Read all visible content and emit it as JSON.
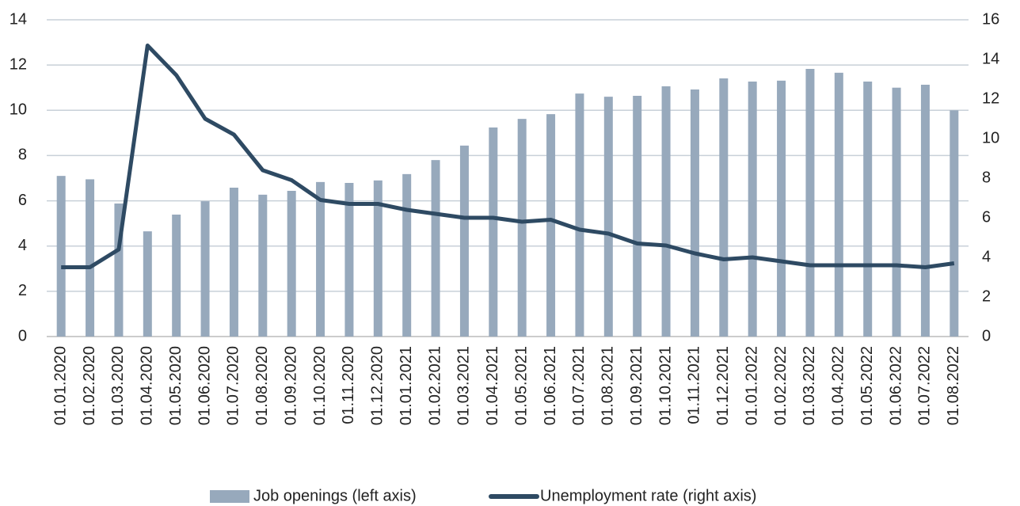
{
  "chart_data": {
    "type": "bar_line",
    "categories": [
      "01.01.2020",
      "01.02.2020",
      "01.03.2020",
      "01.04.2020",
      "01.05.2020",
      "01.06.2020",
      "01.07.2020",
      "01.08.2020",
      "01.09.2020",
      "01.10.2020",
      "01.11.2020",
      "01.12.2020",
      "01.01.2021",
      "01.02.2021",
      "01.03.2021",
      "01.04.2021",
      "01.05.2021",
      "01.06.2021",
      "01.07.2021",
      "01.08.2021",
      "01.09.2021",
      "01.10.2021",
      "01.11.2021",
      "01.12.2021",
      "01.01.2022",
      "01.02.2022",
      "01.03.2022",
      "01.04.2022",
      "01.05.2022",
      "01.06.2022",
      "01.07.2022",
      "01.08.2022"
    ],
    "series": [
      {
        "name": "Job openings (left axis)",
        "type": "bar",
        "color": "#97a9bc",
        "values": [
          7.1,
          6.95,
          5.88,
          4.65,
          5.39,
          5.98,
          6.58,
          6.27,
          6.44,
          6.83,
          6.79,
          6.9,
          7.18,
          7.8,
          8.44,
          9.24,
          9.62,
          9.83,
          10.74,
          10.6,
          10.64,
          11.06,
          10.92,
          11.41,
          11.27,
          11.31,
          11.83,
          11.66,
          11.27,
          11.0,
          11.13,
          10.0
        ]
      },
      {
        "name": "Unemployment rate (right axis)",
        "type": "line",
        "axis": "y2",
        "color": "#2e4a63",
        "values": [
          3.5,
          3.5,
          4.4,
          14.7,
          13.2,
          11.0,
          10.2,
          8.4,
          7.9,
          6.9,
          6.7,
          6.7,
          6.4,
          6.2,
          6.0,
          6.0,
          5.8,
          5.9,
          5.4,
          5.2,
          4.7,
          4.6,
          4.2,
          3.9,
          4.0,
          3.8,
          3.6,
          3.6,
          3.6,
          3.6,
          3.5,
          3.7
        ]
      }
    ],
    "ylim": [
      0,
      14
    ],
    "yticks": [
      0,
      2,
      4,
      6,
      8,
      10,
      12,
      14
    ],
    "y2lim": [
      0,
      16
    ],
    "y2ticks": [
      0,
      2,
      4,
      6,
      8,
      10,
      12,
      14,
      16
    ],
    "grid": true,
    "legend": "bottom"
  }
}
